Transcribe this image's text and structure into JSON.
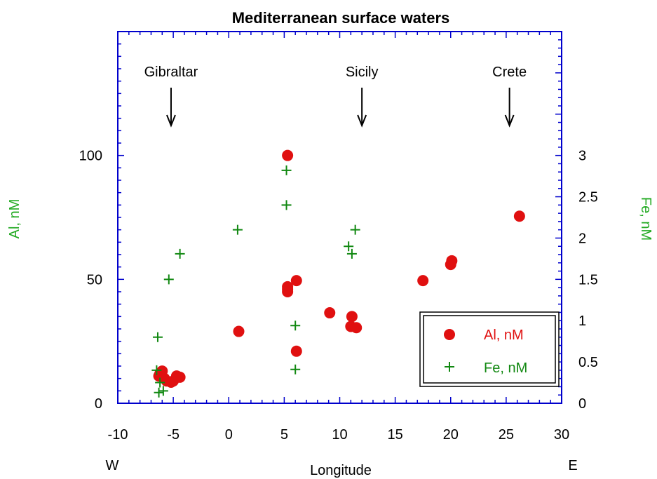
{
  "chart_data": {
    "type": "scatter",
    "title": "Mediterranean surface waters",
    "xlabel": "Longitude",
    "ylabel_left": "Al, nM",
    "ylabel_right": "Fe, nM",
    "x_end_labels": {
      "left": "W",
      "right": "E"
    },
    "xlim": [
      -10,
      30
    ],
    "ylim_left": [
      0,
      150
    ],
    "ylim_right": [
      0,
      4.5
    ],
    "x_ticks": [
      -10,
      -5,
      0,
      5,
      10,
      15,
      20,
      25,
      30
    ],
    "y_left_ticks": [
      0,
      50,
      100
    ],
    "y_right_ticks": [
      0,
      0.5,
      1,
      1.5,
      2,
      2.5,
      3
    ],
    "annotations": [
      {
        "label": "Gibraltar",
        "x": -5.2
      },
      {
        "label": "Sicily",
        "x": 12.0
      },
      {
        "label": "Crete",
        "x": 25.3
      }
    ],
    "legend": {
      "position": "bottom-right",
      "entries": [
        "Al, nM",
        "Fe, nM"
      ]
    },
    "colors": {
      "axis": "#0000cc",
      "al": "#e01010",
      "fe": "#118811",
      "axis_label": "#22aa22"
    },
    "series": [
      {
        "name": "Al, nM",
        "axis": "left",
        "marker": "circle",
        "points": [
          [
            -6.2,
            12
          ],
          [
            -6.3,
            11
          ],
          [
            -6.0,
            13
          ],
          [
            -5.8,
            10
          ],
          [
            -5.6,
            9
          ],
          [
            -5.2,
            8.5
          ],
          [
            -5.0,
            9
          ],
          [
            -4.7,
            11
          ],
          [
            -4.4,
            10.5
          ],
          [
            0.9,
            29
          ],
          [
            5.3,
            100
          ],
          [
            5.3,
            47
          ],
          [
            5.3,
            46
          ],
          [
            5.3,
            45
          ],
          [
            6.1,
            49.5
          ],
          [
            6.1,
            21
          ],
          [
            9.1,
            36.5
          ],
          [
            11.1,
            35
          ],
          [
            11.0,
            31
          ],
          [
            11.5,
            30.5
          ],
          [
            17.5,
            49.5
          ],
          [
            20.0,
            56
          ],
          [
            20.1,
            57.5
          ],
          [
            26.2,
            75.5
          ]
        ]
      },
      {
        "name": "Fe, nM",
        "axis": "right",
        "marker": "plus",
        "points": [
          [
            -6.4,
            0.8
          ],
          [
            -6.5,
            0.4
          ],
          [
            -6.2,
            0.25
          ],
          [
            -6.3,
            0.13
          ],
          [
            -5.9,
            0.15
          ],
          [
            -5.4,
            1.5
          ],
          [
            -4.4,
            1.81
          ],
          [
            0.8,
            2.1
          ],
          [
            5.2,
            2.82
          ],
          [
            5.2,
            2.4
          ],
          [
            6.0,
            0.94
          ],
          [
            6.0,
            0.41
          ],
          [
            10.8,
            1.9
          ],
          [
            11.1,
            1.81
          ],
          [
            11.4,
            2.1
          ]
        ]
      }
    ]
  }
}
